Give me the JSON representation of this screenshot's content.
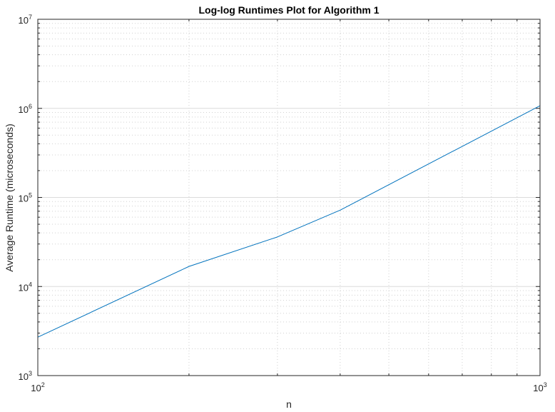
{
  "chart_data": {
    "type": "line",
    "title": "Log-log Runtimes Plot for Algorithm 1",
    "xlabel": "n",
    "ylabel": "Average Runtime (microseconds)",
    "xscale": "log",
    "yscale": "log",
    "xlim": [
      100,
      1000
    ],
    "ylim": [
      1000,
      10000000
    ],
    "grid": true,
    "minor_grid": true,
    "x_ticks": [
      {
        "base": "10",
        "exp": "2"
      },
      {
        "base": "10",
        "exp": "3"
      }
    ],
    "y_ticks": [
      {
        "base": "10",
        "exp": "3"
      },
      {
        "base": "10",
        "exp": "4"
      },
      {
        "base": "10",
        "exp": "5"
      },
      {
        "base": "10",
        "exp": "6"
      },
      {
        "base": "10",
        "exp": "7"
      }
    ],
    "series": [
      {
        "color": "#0072bd",
        "x": [
          100,
          200,
          300,
          400,
          1000
        ],
        "y": [
          2700,
          16800,
          36000,
          72000,
          1070000
        ]
      }
    ]
  }
}
